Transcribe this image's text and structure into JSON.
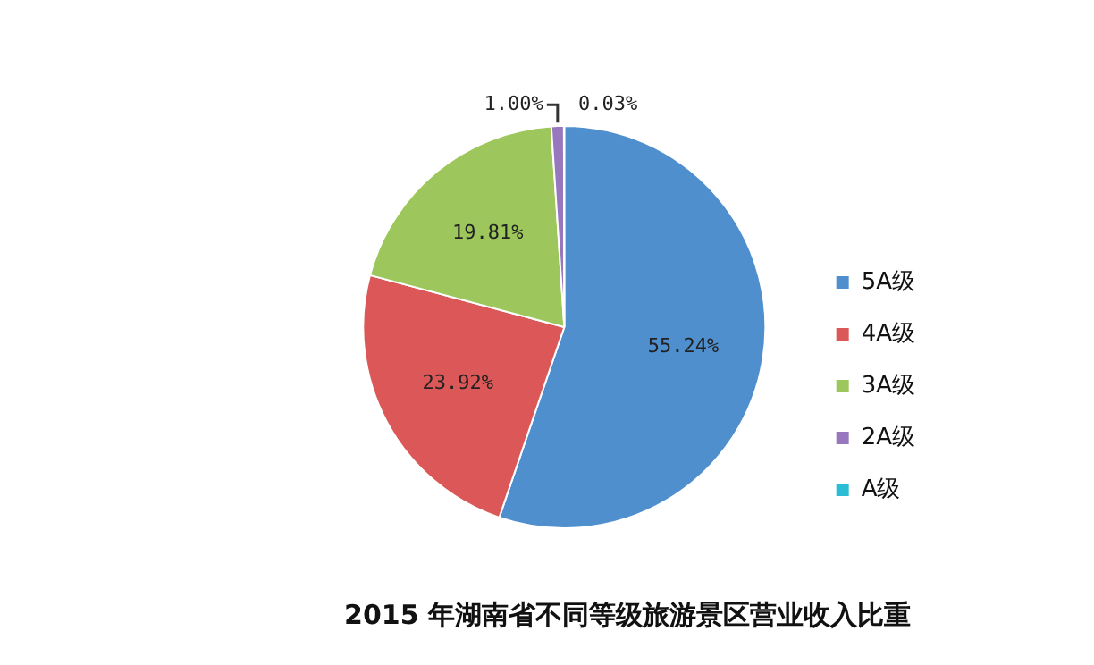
{
  "chart_data": {
    "type": "pie",
    "title": "2015 年湖南省不同等级旅游景区营业收入比重",
    "categories": [
      "5A级",
      "4A级",
      "3A级",
      "2A级",
      "A级"
    ],
    "values": [
      55.24,
      23.92,
      19.81,
      1.0,
      0.03
    ],
    "colors": [
      "#4f8fcd",
      "#dc5757",
      "#9dc75c",
      "#9778be",
      "#2bbcd6"
    ],
    "value_labels": [
      "55.24%",
      "23.92%",
      "19.81%",
      "1.00%",
      "0.03%"
    ],
    "legend": "right"
  }
}
